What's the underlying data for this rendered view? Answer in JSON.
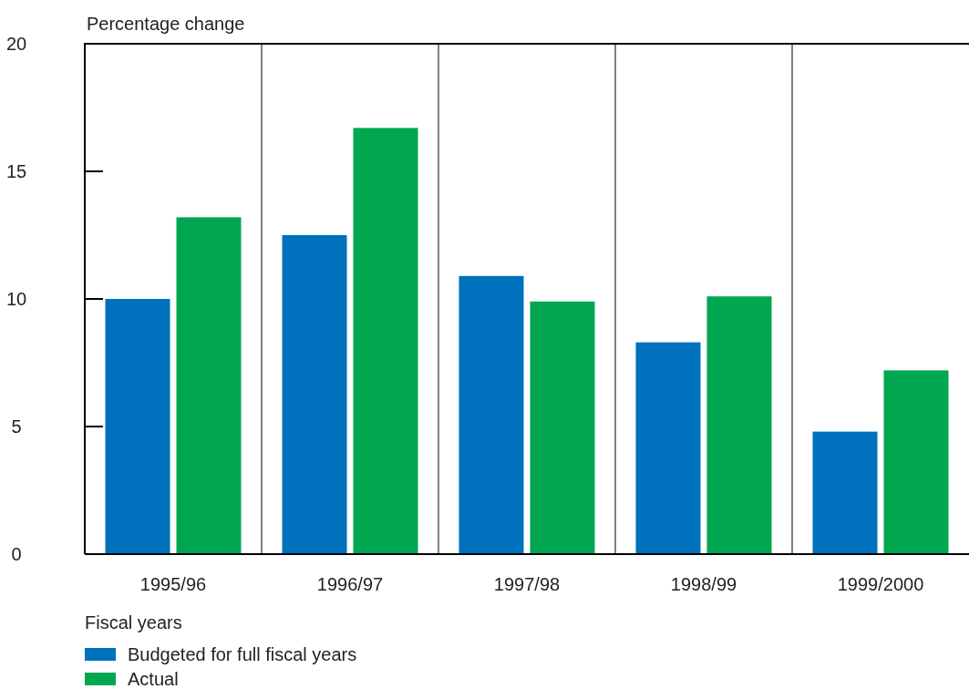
{
  "chart_data": {
    "type": "bar",
    "ylabel": "Percentage change",
    "legend_title": "Fiscal years",
    "categories": [
      "1995/96",
      "1996/97",
      "1997/98",
      "1998/99",
      "1999/2000"
    ],
    "series": [
      {
        "name": "Budgeted for full fiscal years",
        "color": "#0071bc",
        "values": [
          10.0,
          12.5,
          10.9,
          8.3,
          4.8
        ]
      },
      {
        "name": "Actual",
        "color": "#00a650",
        "values": [
          13.2,
          16.7,
          9.9,
          10.1,
          7.2
        ]
      }
    ],
    "ylim": [
      0,
      20
    ],
    "yticks": [
      0,
      5,
      10,
      15,
      20
    ],
    "grid": false,
    "legend": "bottom left"
  }
}
